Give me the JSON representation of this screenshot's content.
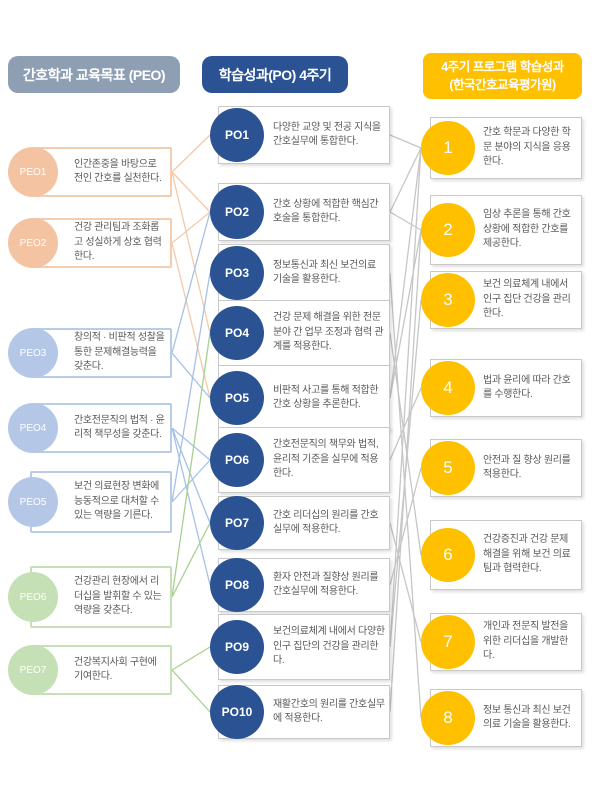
{
  "headers": {
    "peo": "간호학과 교육목표 (PEO)",
    "po": "학습성과(PO) 4주기",
    "outcome_line1": "4주기 프로그램 학습성과",
    "outcome_line2": "(한국간호교육평가원)"
  },
  "peo": {
    "items": [
      {
        "label": "PEO1",
        "text": "인간존중을 바탕으로 전인 간호를 실천한다."
      },
      {
        "label": "PEO2",
        "text": "건강 관리팀과 조화롭고 성실하게 상호 협력한다."
      },
      {
        "label": "PEO3",
        "text": "창의적 · 비판적 성찰을 통한 문제해결능력을 갖춘다."
      },
      {
        "label": "PEO4",
        "text": "간호전문직의 법적 · 윤리적 책무성을 갖춘다."
      },
      {
        "label": "PEO5",
        "text": "보건 의료현장 변화에 능동적으로 대처할 수 있는 역량을 기른다."
      },
      {
        "label": "PEO6",
        "text": "건강관리 현장에서 리더십을 발휘할 수 있는 역량을 갖춘다."
      },
      {
        "label": "PEO7",
        "text": "건강복지사회 구현에 기여한다."
      }
    ]
  },
  "po": {
    "items": [
      {
        "label": "PO1",
        "text": "다양한 교양 및 전공 지식을 간호실무에 통합한다."
      },
      {
        "label": "PO2",
        "text": "간호 상황에 적합한 핵심간호술을 통합한다."
      },
      {
        "label": "PO3",
        "text": "정보통신과 최신 보건의료 기술을 활용한다."
      },
      {
        "label": "PO4",
        "text": "건강 문제 해결을 위한 전문분야 간 업무 조정과 협력 관계를 적용한다."
      },
      {
        "label": "PO5",
        "text": "비판적 사고를 통해 적합한 간호 상황을 추론한다."
      },
      {
        "label": "PO6",
        "text": "간호전문직의 책무와 법적, 윤리적 기준을 실무에 적용한다."
      },
      {
        "label": "PO7",
        "text": "간호 리더십의 원리를 간호실무에 적용한다."
      },
      {
        "label": "PO8",
        "text": "환자 안전과 질향상 원리를 간호실무에 적용한다."
      },
      {
        "label": "PO9",
        "text": "보건의료체계 내에서 다양한 인구 집단의 건강을 관리한다."
      },
      {
        "label": "PO10",
        "text": "재활간호의 원리를 간호실무에 적용한다."
      }
    ]
  },
  "outcomes": {
    "items": [
      {
        "label": "1",
        "text": "간호 학문과 다양한 학문 분야의 지식을 응용한다."
      },
      {
        "label": "2",
        "text": "임상 추론을 통해 간호 상황에 적합한 간호를 제공한다."
      },
      {
        "label": "3",
        "text": "보건 의료체계 내에서 인구 집단 건강을 관리한다."
      },
      {
        "label": "4",
        "text": "법과 윤리에 따라 간호를 수행한다."
      },
      {
        "label": "5",
        "text": "안전과 질 향상 원리를 적용한다."
      },
      {
        "label": "6",
        "text": "건강증진과 건강 문제 해결을 위해 보건 의료팀과 협력한다."
      },
      {
        "label": "7",
        "text": "개인과 전문직 발전을 위한 리더십을 개발한다."
      },
      {
        "label": "8",
        "text": "정보 통신과 최신 보건의료 기술을 활용한다."
      }
    ]
  },
  "colors": {
    "peach": "#F6C9A8",
    "blue": "#A6C1E6",
    "green": "#A8D08D",
    "gray": "#C6C6C6",
    "navy": "#2B5394",
    "gold": "#FFC000",
    "header_gray": "#8E9FB3"
  },
  "connections": {
    "peo_po": [
      [
        "peo1",
        "po1"
      ],
      [
        "peo1",
        "po2"
      ],
      [
        "peo1",
        "po4"
      ],
      [
        "peo2",
        "po2"
      ],
      [
        "peo2",
        "po5"
      ],
      [
        "peo3",
        "po2"
      ],
      [
        "peo3",
        "po5"
      ],
      [
        "peo4",
        "po6"
      ],
      [
        "peo4",
        "po7"
      ],
      [
        "peo4",
        "po8"
      ],
      [
        "peo5",
        "po3"
      ],
      [
        "peo5",
        "po6"
      ],
      [
        "peo6",
        "po4"
      ],
      [
        "peo6",
        "po7"
      ],
      [
        "peo7",
        "po9"
      ],
      [
        "peo7",
        "po10"
      ]
    ],
    "po_outcome": [
      [
        "po1",
        "o1"
      ],
      [
        "po2",
        "o1"
      ],
      [
        "po2",
        "o2"
      ],
      [
        "po3",
        "o8"
      ],
      [
        "po4",
        "o6"
      ],
      [
        "po5",
        "o1"
      ],
      [
        "po5",
        "o2"
      ],
      [
        "po6",
        "o4"
      ],
      [
        "po7",
        "o7"
      ],
      [
        "po8",
        "o5"
      ],
      [
        "po9",
        "o3"
      ],
      [
        "po9",
        "o1"
      ],
      [
        "po10",
        "o2"
      ]
    ]
  }
}
